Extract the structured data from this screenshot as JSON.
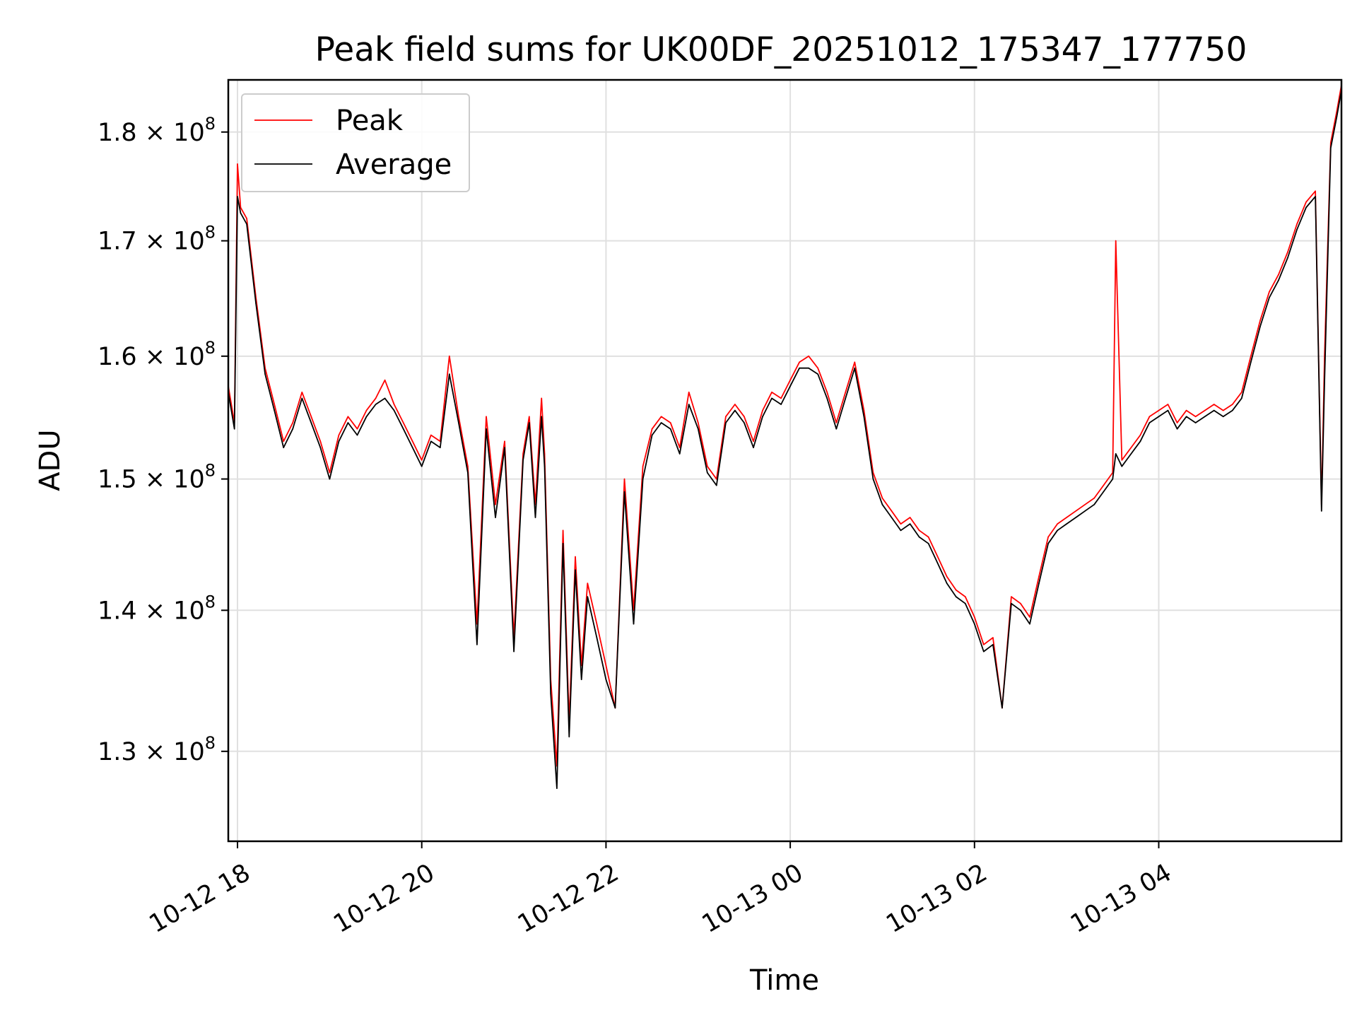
{
  "chart_data": {
    "type": "line",
    "title": "Peak field sums for UK00DF_20251012_175347_177750",
    "xlabel": "Time",
    "ylabel": "ADU",
    "y_scale": "log",
    "ylim": [
      124000000.0,
      185000000.0
    ],
    "xlim": [
      "2025-10-12T17:54",
      "2025-10-13T05:59"
    ],
    "grid": true,
    "legend": {
      "placement": "upper-left",
      "entries": [
        "Peak",
        "Average"
      ]
    },
    "x_ticks": [
      {
        "value": "2025-10-12T18:00",
        "label": "10-12 18"
      },
      {
        "value": "2025-10-12T20:00",
        "label": "10-12 20"
      },
      {
        "value": "2025-10-12T22:00",
        "label": "10-12 22"
      },
      {
        "value": "2025-10-13T00:00",
        "label": "10-13 00"
      },
      {
        "value": "2025-10-13T02:00",
        "label": "10-13 02"
      },
      {
        "value": "2025-10-13T04:00",
        "label": "10-13 04"
      }
    ],
    "y_ticks": [
      {
        "value": 130000000.0,
        "label": "1.3 × 10",
        "exp": "8"
      },
      {
        "value": 140000000.0,
        "label": "1.4 × 10",
        "exp": "8"
      },
      {
        "value": 150000000.0,
        "label": "1.5 × 10",
        "exp": "8"
      },
      {
        "value": 160000000.0,
        "label": "1.6 × 10",
        "exp": "8"
      },
      {
        "value": 170000000.0,
        "label": "1.7 × 10",
        "exp": "8"
      },
      {
        "value": 180000000.0,
        "label": "1.8 × 10",
        "exp": "8"
      }
    ],
    "series": [
      {
        "name": "Peak",
        "color": "#ff0000",
        "x": [
          "2025-10-12T17:54",
          "2025-10-12T17:58",
          "2025-10-12T18:00",
          "2025-10-12T18:02",
          "2025-10-12T18:06",
          "2025-10-12T18:12",
          "2025-10-12T18:18",
          "2025-10-12T18:24",
          "2025-10-12T18:30",
          "2025-10-12T18:36",
          "2025-10-12T18:42",
          "2025-10-12T18:48",
          "2025-10-12T18:54",
          "2025-10-12T19:00",
          "2025-10-12T19:06",
          "2025-10-12T19:12",
          "2025-10-12T19:18",
          "2025-10-12T19:24",
          "2025-10-12T19:30",
          "2025-10-12T19:36",
          "2025-10-12T19:42",
          "2025-10-12T19:48",
          "2025-10-12T19:54",
          "2025-10-12T20:00",
          "2025-10-12T20:06",
          "2025-10-12T20:12",
          "2025-10-12T20:18",
          "2025-10-12T20:24",
          "2025-10-12T20:30",
          "2025-10-12T20:36",
          "2025-10-12T20:42",
          "2025-10-12T20:48",
          "2025-10-12T20:54",
          "2025-10-12T21:00",
          "2025-10-12T21:06",
          "2025-10-12T21:10",
          "2025-10-12T21:14",
          "2025-10-12T21:18",
          "2025-10-12T21:20",
          "2025-10-12T21:24",
          "2025-10-12T21:28",
          "2025-10-12T21:32",
          "2025-10-12T21:36",
          "2025-10-12T21:40",
          "2025-10-12T21:44",
          "2025-10-12T21:48",
          "2025-10-12T21:54",
          "2025-10-12T22:00",
          "2025-10-12T22:06",
          "2025-10-12T22:12",
          "2025-10-12T22:18",
          "2025-10-12T22:24",
          "2025-10-12T22:30",
          "2025-10-12T22:36",
          "2025-10-12T22:42",
          "2025-10-12T22:48",
          "2025-10-12T22:54",
          "2025-10-12T23:00",
          "2025-10-12T23:06",
          "2025-10-12T23:12",
          "2025-10-12T23:18",
          "2025-10-12T23:24",
          "2025-10-12T23:30",
          "2025-10-12T23:36",
          "2025-10-12T23:42",
          "2025-10-12T23:48",
          "2025-10-12T23:54",
          "2025-10-13T00:00",
          "2025-10-13T00:06",
          "2025-10-13T00:12",
          "2025-10-13T00:18",
          "2025-10-13T00:24",
          "2025-10-13T00:30",
          "2025-10-13T00:36",
          "2025-10-13T00:42",
          "2025-10-13T00:48",
          "2025-10-13T00:54",
          "2025-10-13T01:00",
          "2025-10-13T01:06",
          "2025-10-13T01:12",
          "2025-10-13T01:18",
          "2025-10-13T01:24",
          "2025-10-13T01:30",
          "2025-10-13T01:36",
          "2025-10-13T01:42",
          "2025-10-13T01:48",
          "2025-10-13T01:54",
          "2025-10-13T02:00",
          "2025-10-13T02:06",
          "2025-10-13T02:12",
          "2025-10-13T02:18",
          "2025-10-13T02:24",
          "2025-10-13T02:30",
          "2025-10-13T02:36",
          "2025-10-13T02:42",
          "2025-10-13T02:48",
          "2025-10-13T02:54",
          "2025-10-13T03:00",
          "2025-10-13T03:06",
          "2025-10-13T03:12",
          "2025-10-13T03:18",
          "2025-10-13T03:24",
          "2025-10-13T03:30",
          "2025-10-13T03:32",
          "2025-10-13T03:36",
          "2025-10-13T03:42",
          "2025-10-13T03:48",
          "2025-10-13T03:54",
          "2025-10-13T04:00",
          "2025-10-13T04:06",
          "2025-10-13T04:12",
          "2025-10-13T04:18",
          "2025-10-13T04:24",
          "2025-10-13T04:30",
          "2025-10-13T04:36",
          "2025-10-13T04:42",
          "2025-10-13T04:48",
          "2025-10-13T04:54",
          "2025-10-13T05:00",
          "2025-10-13T05:06",
          "2025-10-13T05:12",
          "2025-10-13T05:18",
          "2025-10-13T05:24",
          "2025-10-13T05:30",
          "2025-10-13T05:36",
          "2025-10-13T05:42",
          "2025-10-13T05:46",
          "2025-10-13T05:48",
          "2025-10-13T05:52",
          "2025-10-13T05:56",
          "2025-10-13T05:59"
        ],
        "y": [
          157500000.0,
          154500000.0,
          177000000.0,
          173000000.0,
          172000000.0,
          165000000.0,
          159000000.0,
          156000000.0,
          153000000.0,
          154500000.0,
          157000000.0,
          155000000.0,
          153000000.0,
          150500000.0,
          153500000.0,
          155000000.0,
          154000000.0,
          155500000.0,
          156500000.0,
          158000000.0,
          156000000.0,
          154500000.0,
          153000000.0,
          151500000.0,
          153500000.0,
          153000000.0,
          160000000.0,
          155000000.0,
          151000000.0,
          139000000.0,
          155000000.0,
          148000000.0,
          153000000.0,
          138000000.0,
          152000000.0,
          155000000.0,
          148000000.0,
          156500000.0,
          152000000.0,
          135000000.0,
          129000000.0,
          146000000.0,
          132000000.0,
          144000000.0,
          136000000.0,
          142000000.0,
          139000000.0,
          136000000.0,
          133000000.0,
          150000000.0,
          140000000.0,
          151000000.0,
          154000000.0,
          155000000.0,
          154500000.0,
          152500000.0,
          157000000.0,
          154500000.0,
          151000000.0,
          150000000.0,
          155000000.0,
          156000000.0,
          155000000.0,
          153000000.0,
          155500000.0,
          157000000.0,
          156500000.0,
          158000000.0,
          159500000.0,
          160000000.0,
          159000000.0,
          157000000.0,
          154500000.0,
          157000000.0,
          159500000.0,
          155500000.0,
          150500000.0,
          148500000.0,
          147500000.0,
          146500000.0,
          147000000.0,
          146000000.0,
          145500000.0,
          144000000.0,
          142500000.0,
          141500000.0,
          141000000.0,
          139500000.0,
          137500000.0,
          138000000.0,
          133000000.0,
          141000000.0,
          140500000.0,
          139500000.0,
          142500000.0,
          145500000.0,
          146500000.0,
          147000000.0,
          147500000.0,
          148000000.0,
          148500000.0,
          149500000.0,
          150500000.0,
          170000000.0,
          151500000.0,
          152500000.0,
          153500000.0,
          155000000.0,
          155500000.0,
          156000000.0,
          154500000.0,
          155500000.0,
          155000000.0,
          155500000.0,
          156000000.0,
          155500000.0,
          156000000.0,
          157000000.0,
          160000000.0,
          163000000.0,
          165500000.0,
          167000000.0,
          169000000.0,
          171500000.0,
          173500000.0,
          174500000.0,
          148000000.0,
          160000000.0,
          179000000.0,
          182000000.0,
          184500000.0
        ]
      },
      {
        "name": "Average",
        "color": "#000000",
        "x": [
          "2025-10-12T17:54",
          "2025-10-12T17:58",
          "2025-10-12T18:00",
          "2025-10-12T18:02",
          "2025-10-12T18:06",
          "2025-10-12T18:12",
          "2025-10-12T18:18",
          "2025-10-12T18:24",
          "2025-10-12T18:30",
          "2025-10-12T18:36",
          "2025-10-12T18:42",
          "2025-10-12T18:48",
          "2025-10-12T18:54",
          "2025-10-12T19:00",
          "2025-10-12T19:06",
          "2025-10-12T19:12",
          "2025-10-12T19:18",
          "2025-10-12T19:24",
          "2025-10-12T19:30",
          "2025-10-12T19:36",
          "2025-10-12T19:42",
          "2025-10-12T19:48",
          "2025-10-12T19:54",
          "2025-10-12T20:00",
          "2025-10-12T20:06",
          "2025-10-12T20:12",
          "2025-10-12T20:18",
          "2025-10-12T20:24",
          "2025-10-12T20:30",
          "2025-10-12T20:36",
          "2025-10-12T20:42",
          "2025-10-12T20:48",
          "2025-10-12T20:54",
          "2025-10-12T21:00",
          "2025-10-12T21:06",
          "2025-10-12T21:10",
          "2025-10-12T21:14",
          "2025-10-12T21:18",
          "2025-10-12T21:20",
          "2025-10-12T21:24",
          "2025-10-12T21:28",
          "2025-10-12T21:32",
          "2025-10-12T21:36",
          "2025-10-12T21:40",
          "2025-10-12T21:44",
          "2025-10-12T21:48",
          "2025-10-12T21:54",
          "2025-10-12T22:00",
          "2025-10-12T22:06",
          "2025-10-12T22:12",
          "2025-10-12T22:18",
          "2025-10-12T22:24",
          "2025-10-12T22:30",
          "2025-10-12T22:36",
          "2025-10-12T22:42",
          "2025-10-12T22:48",
          "2025-10-12T22:54",
          "2025-10-12T23:00",
          "2025-10-12T23:06",
          "2025-10-12T23:12",
          "2025-10-12T23:18",
          "2025-10-12T23:24",
          "2025-10-12T23:30",
          "2025-10-12T23:36",
          "2025-10-12T23:42",
          "2025-10-12T23:48",
          "2025-10-12T23:54",
          "2025-10-13T00:00",
          "2025-10-13T00:06",
          "2025-10-13T00:12",
          "2025-10-13T00:18",
          "2025-10-13T00:24",
          "2025-10-13T00:30",
          "2025-10-13T00:36",
          "2025-10-13T00:42",
          "2025-10-13T00:48",
          "2025-10-13T00:54",
          "2025-10-13T01:00",
          "2025-10-13T01:06",
          "2025-10-13T01:12",
          "2025-10-13T01:18",
          "2025-10-13T01:24",
          "2025-10-13T01:30",
          "2025-10-13T01:36",
          "2025-10-13T01:42",
          "2025-10-13T01:48",
          "2025-10-13T01:54",
          "2025-10-13T02:00",
          "2025-10-13T02:06",
          "2025-10-13T02:12",
          "2025-10-13T02:18",
          "2025-10-13T02:24",
          "2025-10-13T02:30",
          "2025-10-13T02:36",
          "2025-10-13T02:42",
          "2025-10-13T02:48",
          "2025-10-13T02:54",
          "2025-10-13T03:00",
          "2025-10-13T03:06",
          "2025-10-13T03:12",
          "2025-10-13T03:18",
          "2025-10-13T03:24",
          "2025-10-13T03:30",
          "2025-10-13T03:32",
          "2025-10-13T03:36",
          "2025-10-13T03:42",
          "2025-10-13T03:48",
          "2025-10-13T03:54",
          "2025-10-13T04:00",
          "2025-10-13T04:06",
          "2025-10-13T04:12",
          "2025-10-13T04:18",
          "2025-10-13T04:24",
          "2025-10-13T04:30",
          "2025-10-13T04:36",
          "2025-10-13T04:42",
          "2025-10-13T04:48",
          "2025-10-13T04:54",
          "2025-10-13T05:00",
          "2025-10-13T05:06",
          "2025-10-13T05:12",
          "2025-10-13T05:18",
          "2025-10-13T05:24",
          "2025-10-13T05:30",
          "2025-10-13T05:36",
          "2025-10-13T05:42",
          "2025-10-13T05:46",
          "2025-10-13T05:48",
          "2025-10-13T05:52",
          "2025-10-13T05:56",
          "2025-10-13T05:59"
        ],
        "y": [
          157000000.0,
          154000000.0,
          174000000.0,
          172500000.0,
          171500000.0,
          164500000.0,
          158500000.0,
          155500000.0,
          152500000.0,
          154000000.0,
          156500000.0,
          154500000.0,
          152500000.0,
          150000000.0,
          153000000.0,
          154500000.0,
          153500000.0,
          155000000.0,
          156000000.0,
          156500000.0,
          155500000.0,
          154000000.0,
          152500000.0,
          151000000.0,
          153000000.0,
          152500000.0,
          158500000.0,
          154500000.0,
          150500000.0,
          137500000.0,
          154000000.0,
          147000000.0,
          152500000.0,
          137000000.0,
          151500000.0,
          154500000.0,
          147000000.0,
          155000000.0,
          151000000.0,
          134000000.0,
          127500000.0,
          145000000.0,
          131000000.0,
          143000000.0,
          135000000.0,
          141000000.0,
          138000000.0,
          135000000.0,
          133000000.0,
          149000000.0,
          139000000.0,
          150000000.0,
          153500000.0,
          154500000.0,
          154000000.0,
          152000000.0,
          156000000.0,
          154000000.0,
          150500000.0,
          149500000.0,
          154500000.0,
          155500000.0,
          154500000.0,
          152500000.0,
          155000000.0,
          156500000.0,
          156000000.0,
          157500000.0,
          159000000.0,
          159000000.0,
          158500000.0,
          156500000.0,
          154000000.0,
          156500000.0,
          159000000.0,
          155000000.0,
          150000000.0,
          148000000.0,
          147000000.0,
          146000000.0,
          146500000.0,
          145500000.0,
          145000000.0,
          143500000.0,
          142000000.0,
          141000000.0,
          140500000.0,
          139000000.0,
          137000000.0,
          137500000.0,
          133000000.0,
          140500000.0,
          140000000.0,
          139000000.0,
          142000000.0,
          145000000.0,
          146000000.0,
          146500000.0,
          147000000.0,
          147500000.0,
          148000000.0,
          149000000.0,
          150000000.0,
          152000000.0,
          151000000.0,
          152000000.0,
          153000000.0,
          154500000.0,
          155000000.0,
          155500000.0,
          154000000.0,
          155000000.0,
          154500000.0,
          155000000.0,
          155500000.0,
          155000000.0,
          155500000.0,
          156500000.0,
          159500000.0,
          162500000.0,
          165000000.0,
          166500000.0,
          168500000.0,
          171000000.0,
          173000000.0,
          174000000.0,
          147500000.0,
          158000000.0,
          178500000.0,
          181500000.0,
          184000000.0
        ]
      }
    ]
  }
}
